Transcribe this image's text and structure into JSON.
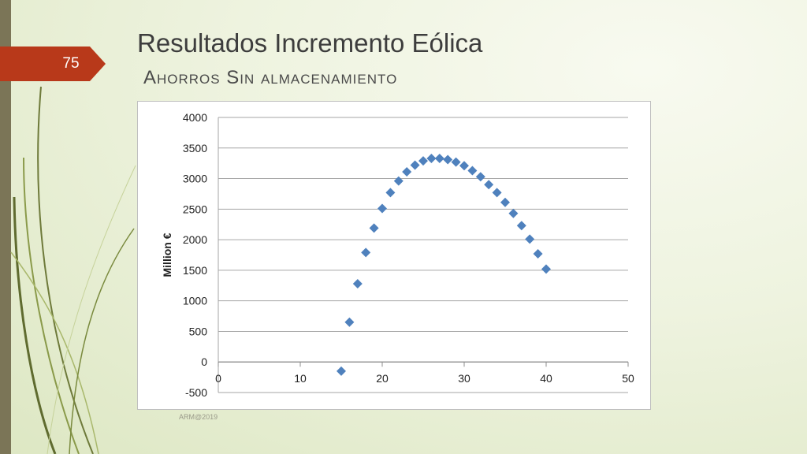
{
  "slide": {
    "number": "75",
    "title": "Resultados Incremento Eólica",
    "subtitle": "Ahorros Sin almacenamiento",
    "footer": "ARM@2019"
  },
  "colors": {
    "accent_tab": "#b8391a",
    "strip": "#7b7557",
    "marker": "#4f81bd",
    "gridline": "#a6a6a6"
  },
  "chart_data": {
    "type": "scatter",
    "title": "",
    "xlabel": "",
    "ylabel": "Million €",
    "xlim": [
      0,
      50
    ],
    "ylim": [
      -500,
      4000
    ],
    "xticks": [
      0,
      10,
      20,
      30,
      40,
      50
    ],
    "yticks": [
      -500,
      0,
      500,
      1000,
      1500,
      2000,
      2500,
      3000,
      3500,
      4000
    ],
    "grid": true,
    "marker": "diamond",
    "series": [
      {
        "x": [
          15,
          16,
          17,
          18,
          19,
          20,
          21,
          22,
          23,
          24,
          25,
          26,
          27,
          28,
          29,
          30,
          31,
          32,
          33,
          34,
          35,
          36,
          37,
          38,
          39,
          40
        ],
        "y": [
          -150,
          650,
          1280,
          1790,
          2190,
          2510,
          2770,
          2960,
          3110,
          3220,
          3290,
          3330,
          3330,
          3310,
          3270,
          3210,
          3130,
          3030,
          2900,
          2770,
          2610,
          2430,
          2230,
          2010,
          1770,
          1520
        ]
      }
    ]
  }
}
